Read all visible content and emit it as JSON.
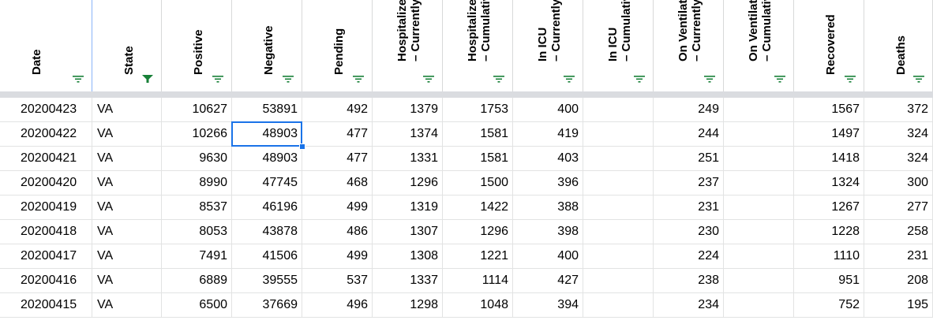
{
  "columns": [
    {
      "key": "date",
      "label": "Date",
      "filter_active": false,
      "align": "left"
    },
    {
      "key": "state",
      "label": "State",
      "filter_active": true,
      "align": "left"
    },
    {
      "key": "positive",
      "label": "Positive",
      "filter_active": false,
      "align": "right"
    },
    {
      "key": "negative",
      "label": "Negative",
      "filter_active": false,
      "align": "right"
    },
    {
      "key": "pending",
      "label": "Pending",
      "filter_active": false,
      "align": "right"
    },
    {
      "key": "hosp_curr",
      "label": "Hospitalized\n– Currently",
      "filter_active": false,
      "align": "right"
    },
    {
      "key": "hosp_cum",
      "label": "Hospitalized\n– Cumulative",
      "filter_active": false,
      "align": "right"
    },
    {
      "key": "icu_curr",
      "label": "In ICU\n– Currently",
      "filter_active": false,
      "align": "right"
    },
    {
      "key": "icu_cum",
      "label": "In ICU\n– Cumulative",
      "filter_active": false,
      "align": "right"
    },
    {
      "key": "vent_curr",
      "label": "On Ventilator\n– Currently",
      "filter_active": false,
      "align": "right"
    },
    {
      "key": "vent_cum",
      "label": "On Ventilator\n– Cumulative",
      "filter_active": false,
      "align": "right"
    },
    {
      "key": "recovered",
      "label": "Recovered",
      "filter_active": false,
      "align": "right"
    },
    {
      "key": "deaths",
      "label": "Deaths",
      "filter_active": false,
      "align": "right"
    }
  ],
  "rows": [
    [
      "20200423",
      "VA",
      "10627",
      "53891",
      "492",
      "1379",
      "1753",
      "400",
      "",
      "249",
      "",
      "1567",
      "372"
    ],
    [
      "20200422",
      "VA",
      "10266",
      "48903",
      "477",
      "1374",
      "1581",
      "419",
      "",
      "244",
      "",
      "1497",
      "324"
    ],
    [
      "20200421",
      "VA",
      "9630",
      "48903",
      "477",
      "1331",
      "1581",
      "403",
      "",
      "251",
      "",
      "1418",
      "324"
    ],
    [
      "20200420",
      "VA",
      "8990",
      "47745",
      "468",
      "1296",
      "1500",
      "396",
      "",
      "237",
      "",
      "1324",
      "300"
    ],
    [
      "20200419",
      "VA",
      "8537",
      "46196",
      "499",
      "1319",
      "1422",
      "388",
      "",
      "231",
      "",
      "1267",
      "277"
    ],
    [
      "20200418",
      "VA",
      "8053",
      "43878",
      "486",
      "1307",
      "1296",
      "398",
      "",
      "230",
      "",
      "1228",
      "258"
    ],
    [
      "20200417",
      "VA",
      "7491",
      "41506",
      "499",
      "1308",
      "1221",
      "400",
      "",
      "224",
      "",
      "1110",
      "231"
    ],
    [
      "20200416",
      "VA",
      "6889",
      "39555",
      "537",
      "1337",
      "1114",
      "427",
      "",
      "238",
      "",
      "951",
      "208"
    ],
    [
      "20200415",
      "VA",
      "6500",
      "37669",
      "496",
      "1298",
      "1048",
      "394",
      "",
      "234",
      "",
      "752",
      "195"
    ]
  ],
  "selection": {
    "row": 1,
    "col": 3
  },
  "colors": {
    "filter_icon": "#188038",
    "selection": "#1a73e8",
    "gridline": "#e2e3e3",
    "frozen_bar": "#dadce0"
  }
}
